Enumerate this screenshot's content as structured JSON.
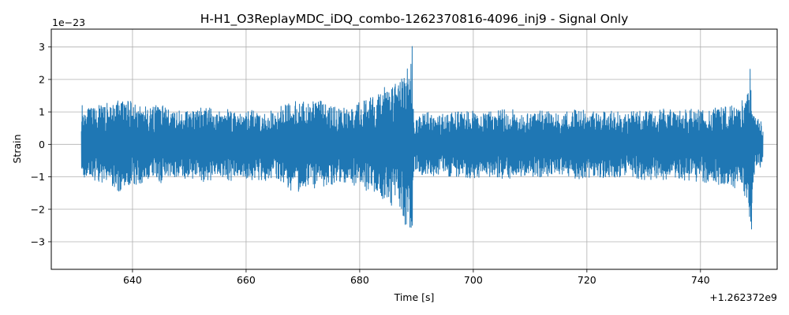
{
  "chart_data": {
    "type": "line",
    "title": "H-H1_O3ReplayMDC_iDQ_combo-1262370816-4096_inj9 - Signal Only",
    "xlabel": "Time [s]",
    "ylabel": "Strain",
    "x_offset_label": "+1.262372e9",
    "y_scale_label": "1e−23",
    "xlim": [
      625.7,
      753.5
    ],
    "ylim": [
      -3.85,
      3.55
    ],
    "x_ticks": [
      640,
      660,
      680,
      700,
      720,
      740
    ],
    "y_ticks": [
      -3,
      -2,
      -1,
      0,
      1,
      2,
      3
    ],
    "x_tick_labels": [
      "640",
      "660",
      "680",
      "700",
      "720",
      "740"
    ],
    "y_tick_labels": [
      "−3",
      "−2",
      "−1",
      "0",
      "1",
      "2",
      "3"
    ],
    "grid": true,
    "color": "#1f77b4",
    "series": [
      {
        "x": [
          631.0,
          632.5,
          634.0,
          636.0,
          637.5,
          639.0,
          641.0,
          643.0,
          645.0,
          647.0,
          649.0,
          651.0,
          653.0,
          655.0,
          657.0,
          659.0,
          661.0,
          663.0,
          665.0,
          667.0,
          669.0,
          671.0,
          673.0,
          675.0,
          677.0,
          679.0,
          681.0,
          682.5,
          684.0,
          685.5,
          687.0,
          688.0,
          688.8,
          689.2,
          689.6,
          691.0,
          694.0,
          697.0,
          700.0,
          703.0,
          706.0,
          709.0,
          712.0,
          715.0,
          718.0,
          721.0,
          724.0,
          727.0,
          730.0,
          733.0,
          736.0,
          739.0,
          742.0,
          745.0,
          747.0,
          748.3,
          748.9,
          749.3,
          750.0,
          751.0
        ],
        "y": [
          1.35,
          1.1,
          1.2,
          1.3,
          1.45,
          1.35,
          1.3,
          1.15,
          1.25,
          1.0,
          1.1,
          1.05,
          1.2,
          1.0,
          1.2,
          0.95,
          1.05,
          1.1,
          1.0,
          1.3,
          1.4,
          1.25,
          1.45,
          1.2,
          1.1,
          1.25,
          1.4,
          1.5,
          1.75,
          1.85,
          1.9,
          2.3,
          2.4,
          3.25,
          0.7,
          1.0,
          0.95,
          1.0,
          1.05,
          1.0,
          1.15,
          0.95,
          1.05,
          0.95,
          1.1,
          1.0,
          1.05,
          1.0,
          1.05,
          1.1,
          1.05,
          1.1,
          1.15,
          1.2,
          1.3,
          1.6,
          2.6,
          0.9,
          0.85,
          0.75
        ],
        "y_low": [
          -1.2,
          -1.05,
          -1.15,
          -1.3,
          -1.45,
          -1.35,
          -1.25,
          -1.1,
          -1.2,
          -1.0,
          -1.1,
          -1.05,
          -1.2,
          -1.0,
          -1.25,
          -1.0,
          -1.1,
          -1.15,
          -1.05,
          -1.35,
          -1.5,
          -1.3,
          -1.4,
          -1.25,
          -1.15,
          -1.3,
          -1.45,
          -1.55,
          -1.8,
          -1.9,
          -1.95,
          -2.5,
          -2.6,
          -3.35,
          -0.75,
          -1.0,
          -0.95,
          -1.0,
          -1.05,
          -1.0,
          -1.1,
          -0.95,
          -1.05,
          -0.95,
          -1.1,
          -1.0,
          -1.05,
          -1.0,
          -1.1,
          -1.1,
          -1.1,
          -1.15,
          -1.2,
          -1.3,
          -1.4,
          -1.7,
          -3.5,
          -1.0,
          -0.85,
          -0.75
        ]
      }
    ]
  }
}
